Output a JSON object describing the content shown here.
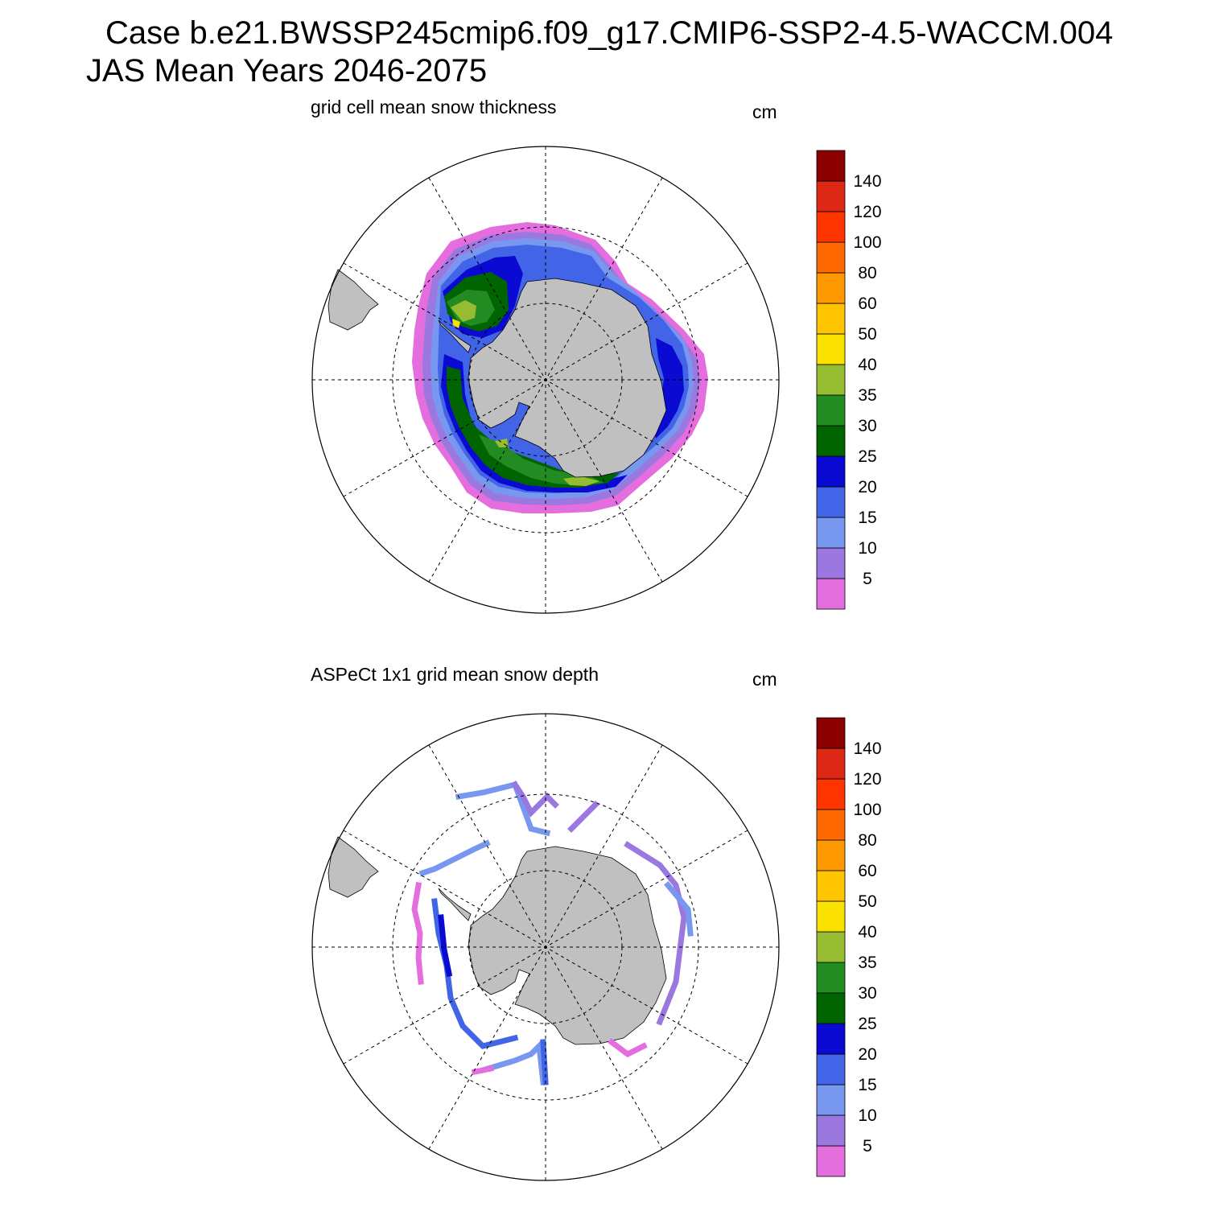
{
  "figure": {
    "title_line1": "Case b.e21.BWSSP245cmip6.f09_g17.CMIP6-SSP2-4.5-WACCM.004",
    "title_line2": "JAS Mean   Years 2046-2075"
  },
  "panels": [
    {
      "title": "grid cell mean snow thickness",
      "unit": "cm"
    },
    {
      "title": "ASPeCt 1x1 grid mean snow depth",
      "unit": "cm"
    }
  ],
  "colorbar": {
    "levels": [
      "5",
      "10",
      "15",
      "20",
      "25",
      "30",
      "35",
      "40",
      "50",
      "60",
      "80",
      "100",
      "120",
      "140"
    ],
    "colors": [
      "#e46ede",
      "#9a78e0",
      "#7898f0",
      "#4264e6",
      "#0a0ad2",
      "#006400",
      "#228b22",
      "#96bd32",
      "#fae100",
      "#ffc400",
      "#ff9800",
      "#ff6a00",
      "#ff3500",
      "#dc2814",
      "#8b0000"
    ]
  },
  "map": {
    "land_color": "#c0c0c0",
    "projection": "south polar stereographic"
  }
}
